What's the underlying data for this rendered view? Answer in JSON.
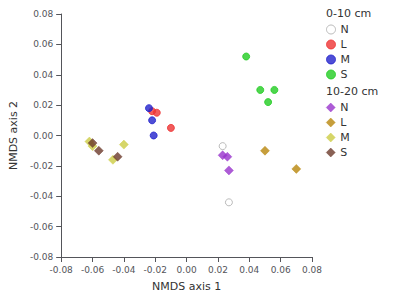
{
  "chart_data": {
    "type": "scatter",
    "xlabel": "NMDS axis 1",
    "ylabel": "NMDS axis 2",
    "xlim": [
      -0.08,
      0.08
    ],
    "ylim": [
      -0.08,
      0.08
    ],
    "xticks": [
      -0.08,
      -0.06,
      -0.04,
      -0.02,
      {
        "value": 0,
        "label": "0.00"
      },
      0.02,
      0.04,
      0.06,
      0.08
    ],
    "yticks": [
      -0.08,
      -0.06,
      -0.04,
      -0.02,
      {
        "value": 0,
        "label": "0.00"
      },
      0.02,
      0.04,
      0.06,
      0.08
    ],
    "grid": false,
    "legend": "upper right",
    "series": [
      {
        "name": "N",
        "group": "0-10 cm",
        "marker": "open_circle",
        "color": "#aaaaaa",
        "x": [
          0.023,
          0.027
        ],
        "y": [
          -0.007,
          -0.044
        ]
      },
      {
        "name": "L",
        "group": "0-10 cm",
        "marker": "circle",
        "color": "#ee3333",
        "x": [
          -0.022,
          -0.019,
          -0.01
        ],
        "y": [
          0.016,
          0.015,
          0.005
        ]
      },
      {
        "name": "M",
        "group": "0-10 cm",
        "marker": "circle",
        "color": "#2222cc",
        "x": [
          -0.024,
          -0.022,
          -0.021
        ],
        "y": [
          0.018,
          0.01,
          0.0
        ]
      },
      {
        "name": "S",
        "group": "0-10 cm",
        "marker": "circle",
        "color": "#22cc22",
        "x": [
          0.038,
          0.047,
          0.052,
          0.056
        ],
        "y": [
          0.052,
          0.03,
          0.022,
          0.03
        ]
      },
      {
        "name": "N",
        "group": "10-20 cm",
        "marker": "diamond",
        "color": "#9933cc",
        "x": [
          0.023,
          0.026,
          0.027
        ],
        "y": [
          -0.013,
          -0.014,
          -0.023
        ]
      },
      {
        "name": "L",
        "group": "10-20 cm",
        "marker": "diamond",
        "color": "#b8860b",
        "x": [
          0.05,
          0.07
        ],
        "y": [
          -0.01,
          -0.022
        ]
      },
      {
        "name": "M",
        "group": "10-20 cm",
        "marker": "diamond",
        "color": "#cccc44",
        "x": [
          -0.062,
          -0.06,
          -0.047,
          -0.04
        ],
        "y": [
          -0.004,
          -0.007,
          -0.016,
          -0.006
        ]
      },
      {
        "name": "S",
        "group": "10-20 cm",
        "marker": "diamond",
        "color": "#6b3a2a",
        "x": [
          -0.06,
          -0.056,
          -0.044
        ],
        "y": [
          -0.005,
          -0.01,
          -0.014
        ]
      }
    ]
  }
}
